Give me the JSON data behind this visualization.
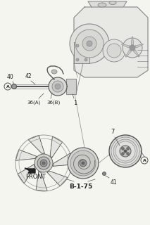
{
  "bg_color": "#f5f5f0",
  "line_color": "#888888",
  "dark_color": "#555555",
  "text_color": "#222222",
  "figsize": [
    2.13,
    3.2
  ],
  "dpi": 100,
  "labels": {
    "front": "FRONT",
    "b175": "B-1-75",
    "num_42": "42",
    "num_40": "40",
    "num_36a": "36(A)",
    "num_36b": "36(B)",
    "num_1": "1",
    "num_7": "7",
    "num_41": "41",
    "circled_A": "A"
  }
}
